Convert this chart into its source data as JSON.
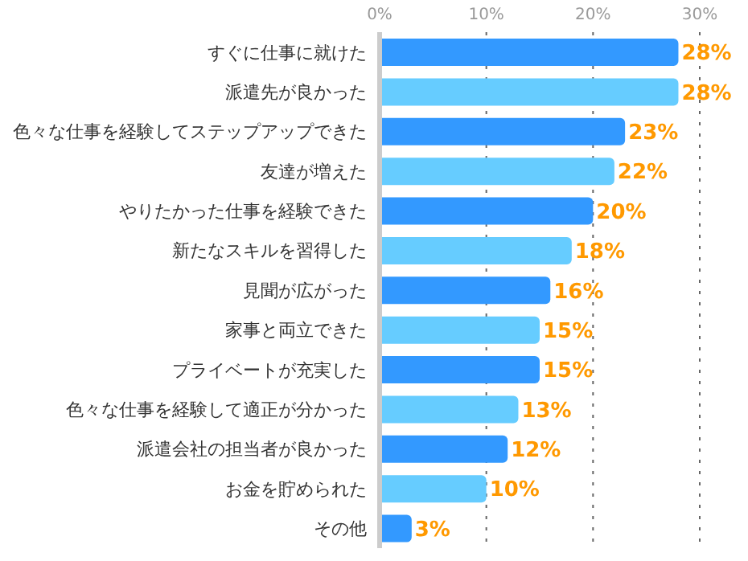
{
  "chart_data": {
    "type": "bar",
    "orientation": "horizontal",
    "categories": [
      "すぐに仕事に就けた",
      "派遣先が良かった",
      "色々な仕事を経験してステップアップできた",
      "友達が増えた",
      "やりたかった仕事を経験できた",
      "新たなスキルを習得した",
      "見聞が広がった",
      "家事と両立できた",
      "プライベートが充実した",
      "色々な仕事を経験して適正が分かった",
      "派遣会社の担当者が良かった",
      "お金を貯められた",
      "その他"
    ],
    "values": [
      28,
      28,
      23,
      22,
      20,
      18,
      16,
      15,
      15,
      13,
      12,
      10,
      3
    ],
    "colors": [
      "#3399ff",
      "#66ccff",
      "#3399ff",
      "#66ccff",
      "#3399ff",
      "#66ccff",
      "#3399ff",
      "#66ccff",
      "#3399ff",
      "#66ccff",
      "#3399ff",
      "#66ccff",
      "#3399ff"
    ],
    "value_labels": [
      "28%",
      "28%",
      "23%",
      "22%",
      "20%",
      "18%",
      "16%",
      "15%",
      "15%",
      "13%",
      "12%",
      "10%",
      "3%"
    ],
    "xlim": [
      0,
      30
    ],
    "xticks": [
      {
        "value": 0,
        "label": "0%"
      },
      {
        "value": 10,
        "label": "10%"
      },
      {
        "value": 20,
        "label": "20%"
      },
      {
        "value": 30,
        "label": "30%"
      }
    ],
    "grid": "x"
  }
}
